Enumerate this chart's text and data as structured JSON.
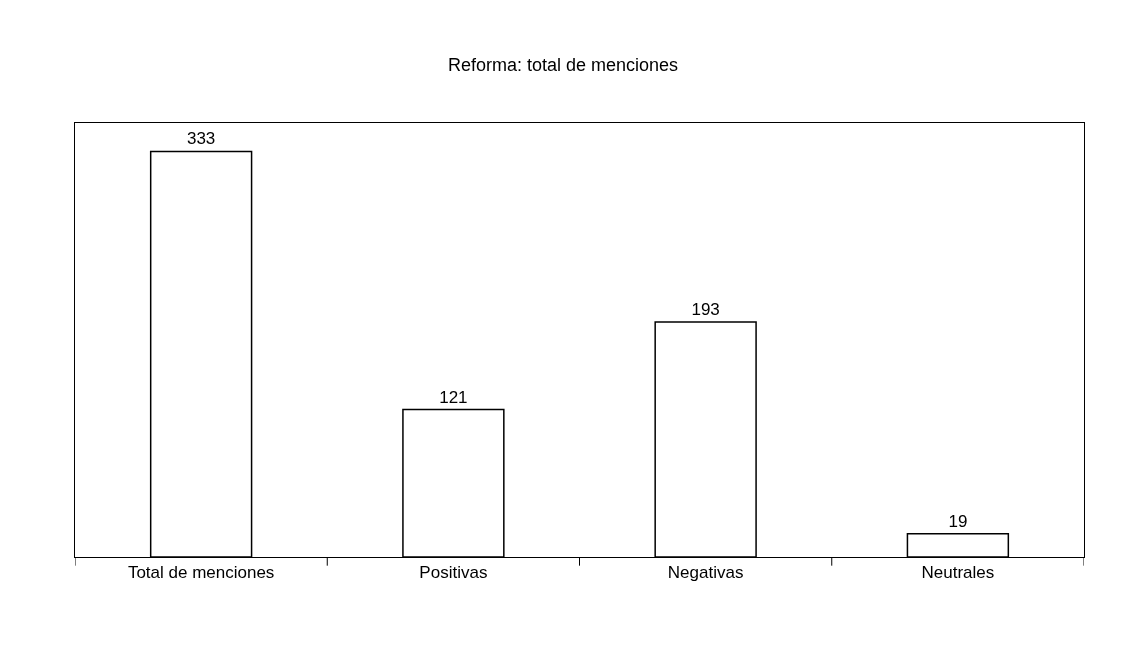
{
  "chart_data": {
    "type": "bar",
    "title": "Reforma: total de menciones",
    "categories": [
      "Total de menciones",
      "Positivas",
      "Negativas",
      "Neutrales"
    ],
    "values": [
      333,
      121,
      193,
      19
    ],
    "color": "#ffffff",
    "data_labels": true,
    "legend": false
  }
}
